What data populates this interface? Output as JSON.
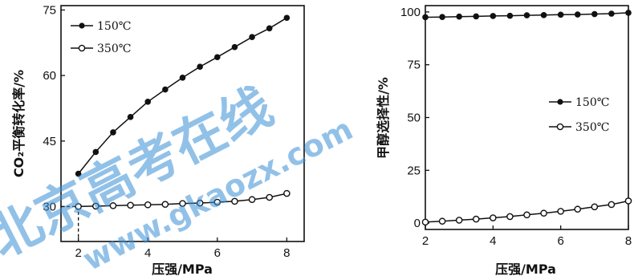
{
  "watermark": {
    "text_cn": "北京高考在线",
    "text_url": "www.gkaozx.com"
  },
  "chart_data": [
    {
      "type": "line",
      "xlabel": "压强/MPa",
      "ylabel": "CO₂平衡转化率/%",
      "xlim": [
        1.5,
        8.5
      ],
      "ylim": [
        22,
        76
      ],
      "xticks": [
        2,
        4,
        6,
        8
      ],
      "yticks": [
        30,
        45,
        60,
        75
      ],
      "legend_position": "top-left",
      "guide_point": {
        "x": 2,
        "y": 30
      },
      "series": [
        {
          "name": "150℃",
          "marker": "filled",
          "x": [
            2,
            2.5,
            3,
            3.5,
            4,
            4.5,
            5,
            5.5,
            6,
            6.5,
            7,
            7.5,
            8
          ],
          "y": [
            37.5,
            42.5,
            47,
            50.5,
            54,
            56.8,
            59.5,
            62,
            64.2,
            66.5,
            68.8,
            70.8,
            73.2
          ]
        },
        {
          "name": "350℃",
          "marker": "hollow",
          "x": [
            2,
            2.5,
            3,
            3.5,
            4,
            4.5,
            5,
            5.5,
            6,
            6.5,
            7,
            7.5,
            8
          ],
          "y": [
            30,
            30.1,
            30.2,
            30.3,
            30.4,
            30.5,
            30.7,
            30.8,
            31,
            31.2,
            31.6,
            32.1,
            33
          ]
        }
      ]
    },
    {
      "type": "line",
      "xlabel": "压强/MPa",
      "ylabel": "甲醇选择性/%",
      "xlim": [
        2,
        8
      ],
      "ylim": [
        -3,
        103
      ],
      "xticks": [
        2,
        4,
        6,
        8
      ],
      "yticks": [
        0,
        25,
        50,
        75,
        100
      ],
      "legend_position": "middle-right",
      "series": [
        {
          "name": "150℃",
          "marker": "filled",
          "x": [
            2,
            2.5,
            3,
            3.5,
            4,
            4.5,
            5,
            5.5,
            6,
            6.5,
            7,
            7.5,
            8
          ],
          "y": [
            97.5,
            97.6,
            97.8,
            97.9,
            98.1,
            98.2,
            98.4,
            98.5,
            98.7,
            98.8,
            99,
            99.2,
            99.6
          ]
        },
        {
          "name": "350℃",
          "marker": "hollow",
          "x": [
            2,
            2.5,
            3,
            3.5,
            4,
            4.5,
            5,
            5.5,
            6,
            6.5,
            7,
            7.5,
            8
          ],
          "y": [
            0.5,
            0.9,
            1.4,
            1.9,
            2.5,
            3.1,
            3.9,
            4.7,
            5.6,
            6.6,
            7.7,
            8.8,
            10.5
          ]
        }
      ]
    }
  ]
}
